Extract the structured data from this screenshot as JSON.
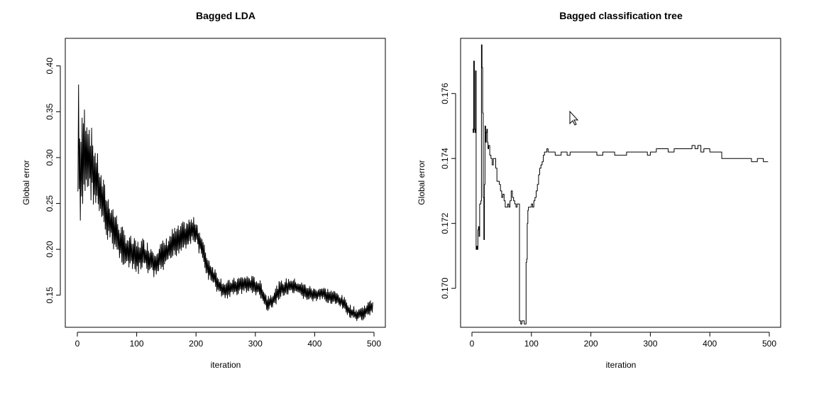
{
  "chart_data": [
    {
      "type": "line",
      "title": "Bagged LDA",
      "xlabel": "iteration",
      "ylabel": "Global error",
      "xlim": [
        0,
        500
      ],
      "ylim": [
        0.115,
        0.43
      ],
      "xticks": [
        0,
        100,
        200,
        300,
        400,
        500
      ],
      "xtick_labels": [
        "0",
        "100",
        "200",
        "300",
        "400",
        "500"
      ],
      "yticks": [
        0.15,
        0.2,
        0.25,
        0.3,
        0.35,
        0.4
      ],
      "ytick_labels": [
        "0.15",
        "0.20",
        "0.25",
        "0.30",
        "0.35",
        "0.40"
      ],
      "grid": false,
      "series": [
        {
          "color": "#000000",
          "x": [
            1,
            5,
            10,
            15,
            20,
            25,
            30,
            35,
            40,
            45,
            50,
            55,
            60,
            70,
            80,
            90,
            100,
            110,
            120,
            130,
            140,
            150,
            160,
            170,
            180,
            190,
            200,
            210,
            220,
            230,
            240,
            250,
            260,
            270,
            280,
            290,
            300,
            310,
            320,
            330,
            340,
            350,
            360,
            370,
            380,
            390,
            400,
            410,
            420,
            430,
            440,
            450,
            460,
            470,
            480,
            490,
            498
          ],
          "y": [
            0.33,
            0.27,
            0.3,
            0.31,
            0.3,
            0.29,
            0.28,
            0.27,
            0.255,
            0.245,
            0.235,
            0.23,
            0.225,
            0.21,
            0.2,
            0.195,
            0.19,
            0.195,
            0.19,
            0.185,
            0.19,
            0.195,
            0.205,
            0.21,
            0.215,
            0.22,
            0.22,
            0.2,
            0.18,
            0.17,
            0.16,
            0.155,
            0.158,
            0.16,
            0.162,
            0.162,
            0.16,
            0.155,
            0.14,
            0.145,
            0.155,
            0.158,
            0.16,
            0.158,
            0.155,
            0.152,
            0.15,
            0.152,
            0.15,
            0.148,
            0.145,
            0.14,
            0.132,
            0.128,
            0.13,
            0.135,
            0.138
          ],
          "spread": [
            0.1,
            0.06,
            0.06,
            0.05,
            0.045,
            0.04,
            0.035,
            0.032,
            0.03,
            0.03,
            0.028,
            0.026,
            0.024,
            0.022,
            0.02,
            0.02,
            0.02,
            0.018,
            0.018,
            0.018,
            0.018,
            0.018,
            0.018,
            0.016,
            0.016,
            0.015,
            0.015,
            0.014,
            0.013,
            0.012,
            0.011,
            0.01,
            0.01,
            0.01,
            0.01,
            0.01,
            0.01,
            0.01,
            0.01,
            0.01,
            0.01,
            0.01,
            0.01,
            0.009,
            0.009,
            0.009,
            0.008,
            0.008,
            0.008,
            0.008,
            0.008,
            0.008,
            0.008,
            0.008,
            0.008,
            0.008,
            0.008
          ]
        }
      ]
    },
    {
      "type": "line",
      "title": "Bagged classification tree",
      "xlabel": "iteration",
      "ylabel": "Global error",
      "xlim": [
        0,
        500
      ],
      "ylim": [
        0.1688,
        0.1777
      ],
      "xticks": [
        0,
        100,
        200,
        300,
        400,
        500
      ],
      "xtick_labels": [
        "0",
        "100",
        "200",
        "300",
        "400",
        "500"
      ],
      "yticks": [
        0.17,
        0.172,
        0.174,
        0.176
      ],
      "ytick_labels": [
        "0.170",
        "0.172",
        "0.174",
        "0.176"
      ],
      "grid": false,
      "series": [
        {
          "color": "#000000",
          "x": [
            1,
            2,
            3,
            4,
            5,
            6,
            7,
            8,
            9,
            10,
            11,
            12,
            13,
            14,
            15,
            16,
            17,
            18,
            19,
            20,
            21,
            22,
            23,
            24,
            25,
            26,
            27,
            28,
            30,
            32,
            34,
            36,
            38,
            40,
            42,
            44,
            46,
            48,
            50,
            52,
            54,
            56,
            58,
            60,
            62,
            64,
            66,
            68,
            70,
            72,
            74,
            76,
            78,
            79,
            80,
            81,
            82,
            84,
            86,
            88,
            90,
            91,
            92,
            93,
            94,
            95,
            96,
            98,
            100,
            102,
            104,
            106,
            108,
            110,
            112,
            114,
            116,
            118,
            120,
            122,
            124,
            126,
            128,
            130,
            135,
            140,
            145,
            150,
            155,
            160,
            165,
            170,
            175,
            180,
            190,
            200,
            210,
            220,
            230,
            240,
            250,
            260,
            270,
            280,
            290,
            295,
            300,
            310,
            320,
            330,
            340,
            350,
            360,
            370,
            375,
            380,
            385,
            390,
            400,
            410,
            420,
            430,
            440,
            450,
            460,
            470,
            480,
            490,
            498
          ],
          "y": [
            0.1749,
            0.1748,
            0.177,
            0.1749,
            0.1748,
            0.1767,
            0.1712,
            0.1713,
            0.1712,
            0.1718,
            0.1719,
            0.1716,
            0.1726,
            0.1726,
            0.1727,
            0.1775,
            0.1768,
            0.1754,
            0.1728,
            0.1715,
            0.1732,
            0.175,
            0.1745,
            0.1748,
            0.1749,
            0.1745,
            0.1743,
            0.1744,
            0.1741,
            0.174,
            0.1738,
            0.174,
            0.174,
            0.1737,
            0.1733,
            0.1733,
            0.1732,
            0.173,
            0.1728,
            0.1729,
            0.1727,
            0.1725,
            0.1725,
            0.1726,
            0.1725,
            0.1727,
            0.173,
            0.1728,
            0.1727,
            0.1726,
            0.1725,
            0.1726,
            0.1726,
            0.1726,
            0.169,
            0.169,
            0.1689,
            0.169,
            0.169,
            0.1689,
            0.1689,
            0.1708,
            0.1709,
            0.172,
            0.1724,
            0.1725,
            0.1725,
            0.1725,
            0.1726,
            0.1725,
            0.1727,
            0.1728,
            0.173,
            0.1732,
            0.1735,
            0.1737,
            0.1738,
            0.1739,
            0.1741,
            0.1742,
            0.1742,
            0.1743,
            0.1742,
            0.1742,
            0.1742,
            0.1741,
            0.1741,
            0.1742,
            0.1742,
            0.1741,
            0.1742,
            0.1742,
            0.1742,
            0.1742,
            0.1742,
            0.1742,
            0.1741,
            0.1742,
            0.1742,
            0.1741,
            0.1741,
            0.1742,
            0.1742,
            0.1742,
            0.1742,
            0.1741,
            0.1742,
            0.1743,
            0.1743,
            0.1742,
            0.1743,
            0.1743,
            0.1743,
            0.1744,
            0.1743,
            0.1744,
            0.1742,
            0.1743,
            0.1742,
            0.1742,
            0.174,
            0.174,
            0.174,
            0.174,
            0.174,
            0.1739,
            0.174,
            0.1739,
            0.1739
          ]
        }
      ]
    }
  ],
  "cursor": {
    "icon": "mouse-pointer-icon"
  }
}
